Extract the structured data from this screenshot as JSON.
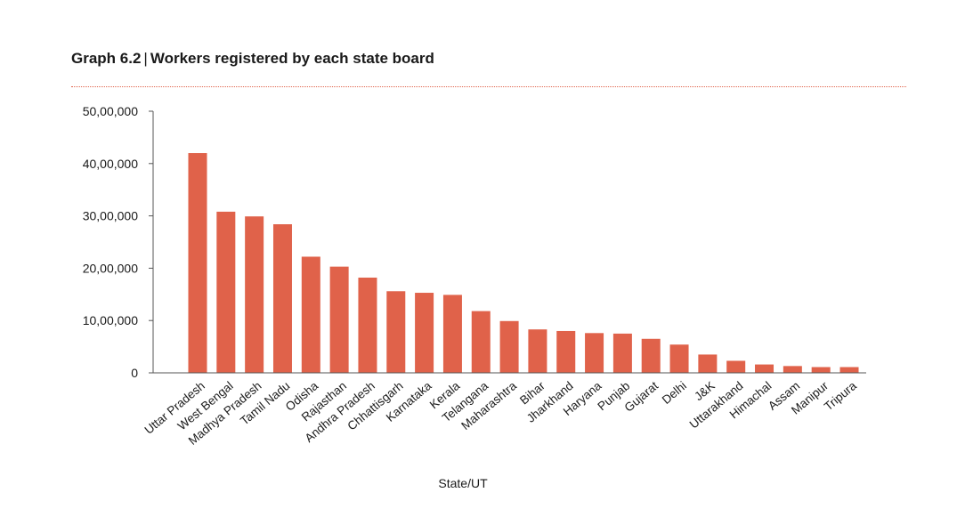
{
  "title": {
    "number": "Graph 6.2",
    "separator": "|",
    "text": "Workers registered by each state board"
  },
  "colors": {
    "bar": "#e0624a",
    "rule": "#e0624a",
    "axis": "#555555"
  },
  "chart_data": {
    "type": "bar",
    "xlabel": "State/UT",
    "ylabel": "",
    "ylim": [
      0,
      5000000
    ],
    "yticks": [
      0,
      1000000,
      2000000,
      3000000,
      4000000,
      5000000
    ],
    "ytick_labels": [
      "0",
      "10,00,000",
      "20,00,000",
      "30,00,000",
      "40,00,000",
      "50,00,000"
    ],
    "grid": false,
    "categories": [
      "Uttar Pradesh",
      "West Bengal",
      "Madhya Pradesh",
      "Tamil Nadu",
      "Odisha",
      "Rajasthan",
      "Andhra Pradesh",
      "Chhattisgarh",
      "Karnataka",
      "Kerala",
      "Telangana",
      "Maharashtra",
      "Bihar",
      "Jharkhand",
      "Haryana",
      "Punjab",
      "Gujarat",
      "Delhi",
      "J&K",
      "Uttarakhand",
      "Himachal",
      "Assam",
      "Manipur",
      "Tripura"
    ],
    "values": [
      4200000,
      3080000,
      2990000,
      2840000,
      2220000,
      2030000,
      1820000,
      1560000,
      1530000,
      1490000,
      1180000,
      990000,
      830000,
      800000,
      760000,
      750000,
      650000,
      540000,
      350000,
      230000,
      160000,
      130000,
      110000,
      110000
    ]
  }
}
